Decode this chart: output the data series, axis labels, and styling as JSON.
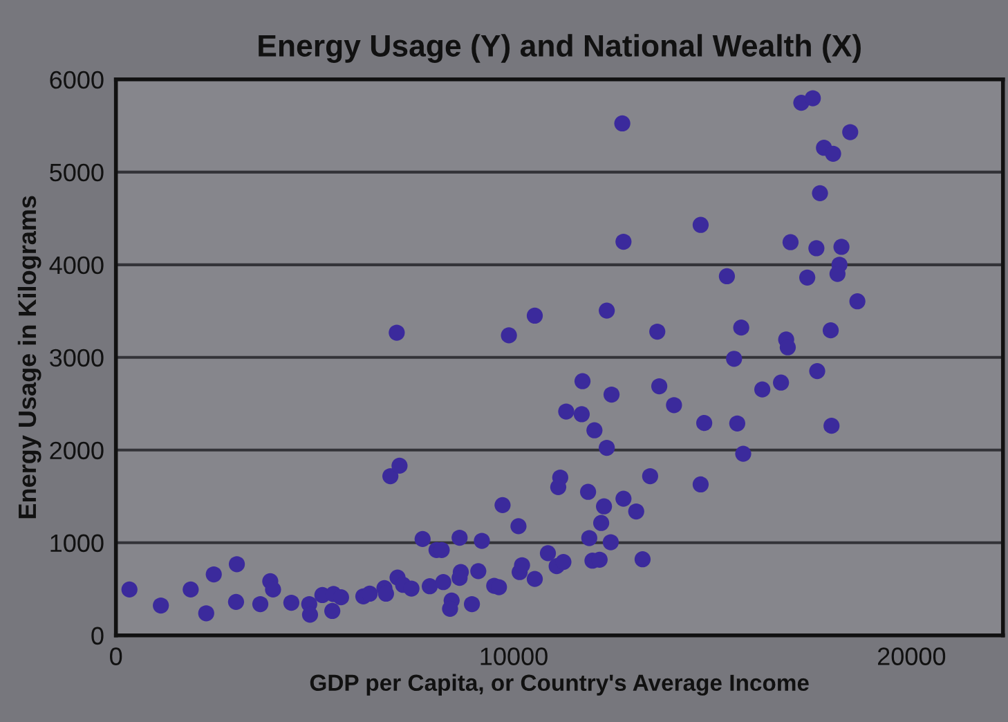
{
  "chart_data": {
    "type": "scatter",
    "title": "Energy Usage (Y) and National Wealth (X)",
    "xlabel": "GDP per Capita, or Country's Average Income",
    "ylabel": "Energy Usage in Kilograms",
    "xlim": [
      0,
      22300
    ],
    "xticks": [
      0,
      10000,
      20000
    ],
    "ylim": [
      0,
      6000
    ],
    "yticks": [
      0,
      1000,
      2000,
      3000,
      4000,
      5000,
      6000
    ],
    "grid": "y",
    "marker": "circle",
    "series": [
      {
        "color": "#3b2a9c",
        "x": [
          340,
          1130,
          1880,
          2270,
          2460,
          3040,
          3020,
          3630,
          3880,
          3950,
          4410,
          4860,
          4880,
          5190,
          5440,
          5470,
          5660,
          6220,
          6380,
          6750,
          6790,
          6900,
          7130,
          7080,
          7220,
          7430,
          7710,
          7890,
          8060,
          8190,
          8230,
          8440,
          8400,
          8640,
          8670,
          8640,
          8950,
          9110,
          9200,
          9510,
          9630,
          9720,
          10120,
          10150,
          7060,
          10530,
          9880,
          12340,
          13610,
          11730,
          12460,
          13660,
          11320,
          11710,
          12030,
          12340,
          13430,
          11170,
          11120,
          11870,
          12760,
          12270,
          13080,
          12200,
          11900,
          12440,
          13240,
          11980,
          12160,
          10860,
          11080,
          11250,
          10210,
          10530,
          12760,
          12730,
          17230,
          17520,
          18460,
          17800,
          18030,
          17700,
          14700,
          16960,
          17610,
          18240,
          18190,
          18140,
          15360,
          17380,
          18640,
          15720,
          17970,
          16850,
          16890,
          15540,
          16720,
          16250,
          17630,
          14030,
          14790,
          15620,
          17990,
          15770,
          14700
        ],
        "values": [
          495,
          322,
          495,
          238,
          658,
          768,
          361,
          337,
          584,
          495,
          352,
          337,
          223,
          435,
          263,
          446,
          411,
          421,
          450,
          510,
          450,
          1718,
          1831,
          624,
          545,
          505,
          1040,
          530,
          921,
          921,
          575,
          376,
          287,
          1054,
          683,
          620,
          337,
          693,
          1020,
          535,
          520,
          1406,
          1178,
          683,
          3267,
          3450,
          3238,
          3505,
          3278,
          2743,
          2599,
          2688,
          2416,
          2387,
          2213,
          2024,
          1718,
          1703,
          1600,
          1549,
          1475,
          1392,
          1337,
          1213,
          1050,
          1005,
          821,
          806,
          817,
          887,
          747,
          792,
          757,
          609,
          4248,
          5525,
          5748,
          5797,
          5431,
          5262,
          5198,
          4772,
          4430,
          4243,
          4178,
          4193,
          4000,
          3901,
          3876,
          3862,
          3605,
          3322,
          3292,
          3193,
          3109,
          2985,
          2728,
          2654,
          2852,
          2485,
          2292,
          2287,
          2262,
          1960,
          1629
        ]
      }
    ]
  }
}
